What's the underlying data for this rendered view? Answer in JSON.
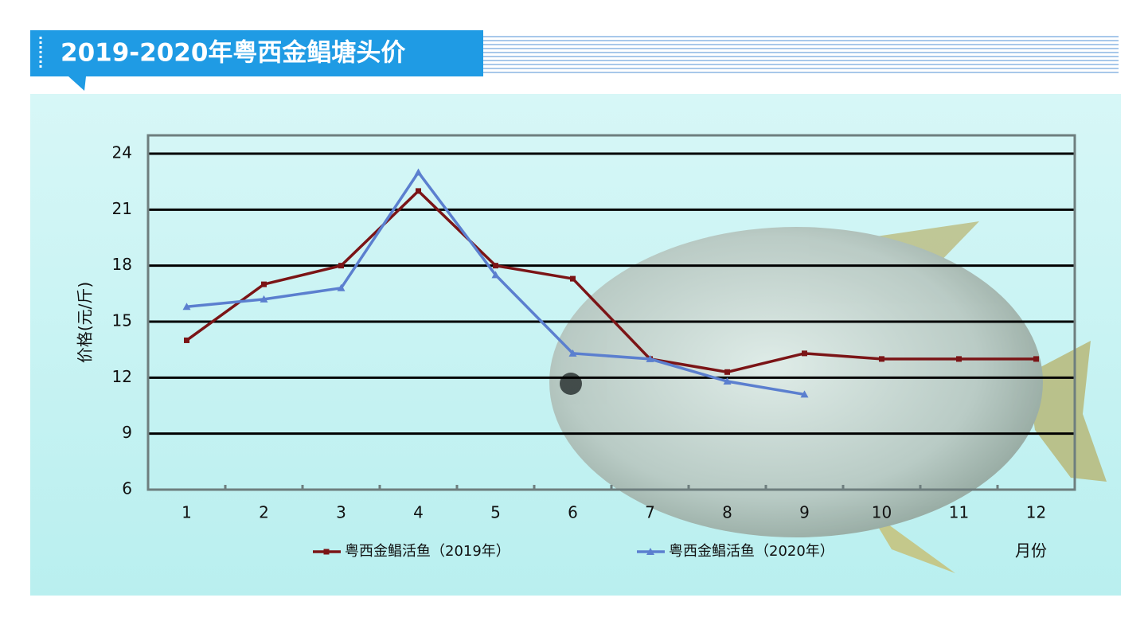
{
  "chart_data": {
    "type": "line",
    "title": "2019-2020年粤西金鲳塘头价",
    "xlabel": "月份",
    "ylabel": "价格(元/斤)",
    "categories": [
      "1",
      "2",
      "3",
      "4",
      "5",
      "6",
      "7",
      "8",
      "9",
      "10",
      "11",
      "12"
    ],
    "series": [
      {
        "name": "粤西金鲳活鱼（2019年）",
        "color": "#7b1416",
        "marker": "square",
        "values": [
          14,
          17,
          18,
          22,
          18,
          17.3,
          13,
          12.3,
          13.3,
          13,
          13,
          13
        ]
      },
      {
        "name": "粤西金鲳活鱼（2020年）",
        "color": "#5b7fcf",
        "marker": "triangle",
        "values": [
          15.8,
          16.2,
          16.8,
          23,
          17.5,
          13.3,
          13,
          11.8,
          11.1,
          null,
          null,
          null
        ]
      }
    ],
    "ylim": [
      6,
      24
    ],
    "yticks": [
      6,
      9,
      12,
      15,
      18,
      21,
      24
    ],
    "grid": true
  }
}
